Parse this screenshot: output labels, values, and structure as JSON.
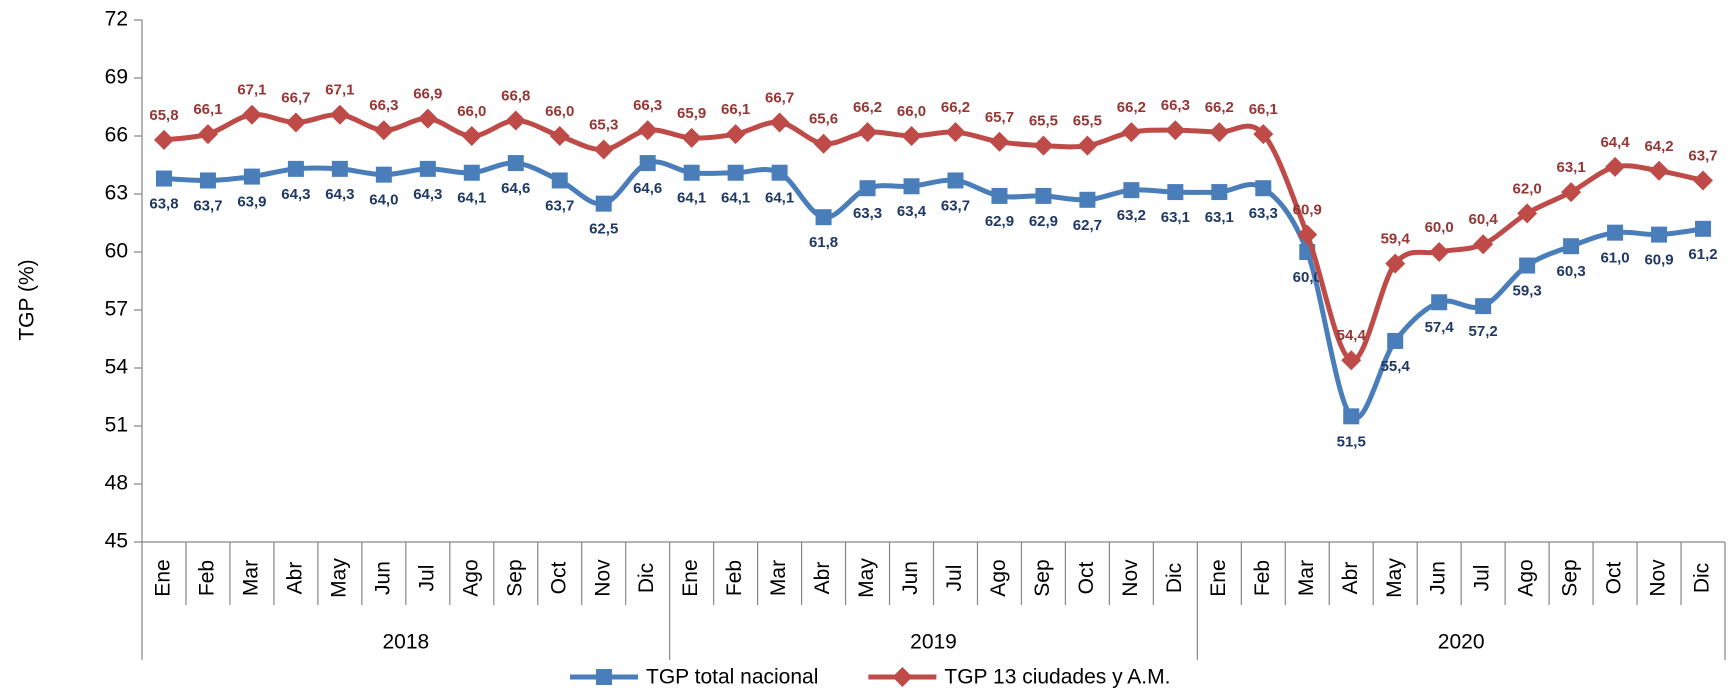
{
  "chart_data": {
    "type": "line",
    "y_label": "TGP (%)",
    "categories": [
      "Ene",
      "Feb",
      "Mar",
      "Abr",
      "May",
      "Jun",
      "Jul",
      "Ago",
      "Sep",
      "Oct",
      "Nov",
      "Dic",
      "Ene",
      "Feb",
      "Mar",
      "Abr",
      "May",
      "Jun",
      "Jul",
      "Ago",
      "Sep",
      "Oct",
      "Nov",
      "Dic",
      "Ene",
      "Feb",
      "Mar",
      "Abr",
      "May",
      "Jun",
      "Jul",
      "Ago",
      "Sep",
      "Oct",
      "Nov",
      "Dic"
    ],
    "years": [
      "2018",
      "2019",
      "2020"
    ],
    "ylim": [
      45,
      72
    ],
    "yticks": [
      45,
      48,
      51,
      54,
      57,
      60,
      63,
      66,
      69,
      72
    ],
    "legend": "bottom",
    "series": [
      {
        "name": "TGP total nacional",
        "color": "#4a7ebb",
        "label_color": "#1f3864",
        "marker": "square",
        "values": [
          63.8,
          63.7,
          63.9,
          64.3,
          64.3,
          64.0,
          64.3,
          64.1,
          64.6,
          63.7,
          62.5,
          64.6,
          64.1,
          64.1,
          64.1,
          61.8,
          63.3,
          63.4,
          63.7,
          62.9,
          62.9,
          62.7,
          63.2,
          63.1,
          63.1,
          63.3,
          60.0,
          51.5,
          55.4,
          57.4,
          57.2,
          59.3,
          60.3,
          61.0,
          60.9,
          61.2
        ],
        "value_labels": [
          "63,8",
          "63,7",
          "63,9",
          "64,3",
          "64,3",
          "64,0",
          "64,3",
          "64,1",
          "64,6",
          "63,7",
          "62,5",
          "64,6",
          "64,1",
          "64,1",
          "64,1",
          "61,8",
          "63,3",
          "63,4",
          "63,7",
          "62,9",
          "62,9",
          "62,7",
          "63,2",
          "63,1",
          "63,1",
          "63,3",
          "60,0",
          "51,5",
          "55,4",
          "57,4",
          "57,2",
          "59,3",
          "60,3",
          "61,0",
          "60,9",
          "61,2"
        ]
      },
      {
        "name": "TGP 13 ciudades y A.M.",
        "color": "#be4b48",
        "label_color": "#953735",
        "marker": "diamond",
        "values": [
          65.8,
          66.1,
          67.1,
          66.7,
          67.1,
          66.3,
          66.9,
          66.0,
          66.8,
          66.0,
          65.3,
          66.3,
          65.9,
          66.1,
          66.7,
          65.6,
          66.2,
          66.0,
          66.2,
          65.7,
          65.5,
          65.5,
          66.2,
          66.3,
          66.2,
          66.1,
          60.9,
          54.4,
          59.4,
          60.0,
          60.4,
          62.0,
          63.1,
          64.4,
          64.2,
          63.7
        ],
        "value_labels": [
          "65,8",
          "66,1",
          "67,1",
          "66,7",
          "67,1",
          "66,3",
          "66,9",
          "66,0",
          "66,8",
          "66,0",
          "65,3",
          "66,3",
          "65,9",
          "66,1",
          "66,7",
          "65,6",
          "66,2",
          "66,0",
          "66,2",
          "65,7",
          "65,5",
          "65,5",
          "66,2",
          "66,3",
          "66,2",
          "66,1",
          "60,9",
          "54,4",
          "59,4",
          "60,0",
          "60,4",
          "62,0",
          "63,1",
          "64,4",
          "64,2",
          "63,7"
        ]
      }
    ]
  }
}
